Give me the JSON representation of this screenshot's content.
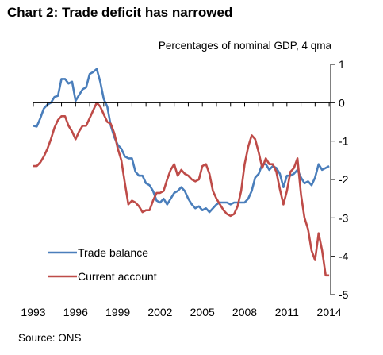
{
  "page": {
    "title": "Chart 2: Trade deficit has narrowed",
    "subtitle": "Percentages of nominal GDP, 4 qma",
    "source": "Source: ONS"
  },
  "chart_data": {
    "type": "line",
    "title": "Chart 2: Trade deficit has narrowed",
    "ylabel": "Percentages of nominal GDP, 4 qma",
    "xlim": [
      1993,
      2014.5
    ],
    "ylim": [
      -5,
      1
    ],
    "x_ticks": [
      1993,
      1996,
      1999,
      2002,
      2005,
      2008,
      2011,
      2014
    ],
    "y_ticks": [
      1,
      0,
      -1,
      -2,
      -3,
      -4,
      -5
    ],
    "y_tick_labels": [
      "1",
      "0",
      "-1",
      "-2",
      "-3",
      "-4",
      "-5"
    ],
    "y_axis_position": "right",
    "grid": false,
    "legend": "bottom-left",
    "series": [
      {
        "name": "Trade balance",
        "color": "#4a7ebb",
        "points": [
          [
            1993.0,
            -0.6
          ],
          [
            1993.25,
            -0.62
          ],
          [
            1993.5,
            -0.4
          ],
          [
            1993.75,
            -0.15
          ],
          [
            1994.0,
            -0.05
          ],
          [
            1994.25,
            0.0
          ],
          [
            1994.5,
            0.15
          ],
          [
            1994.75,
            0.18
          ],
          [
            1995.0,
            0.62
          ],
          [
            1995.25,
            0.62
          ],
          [
            1995.5,
            0.5
          ],
          [
            1995.75,
            0.55
          ],
          [
            1996.0,
            0.05
          ],
          [
            1996.25,
            0.2
          ],
          [
            1996.5,
            0.35
          ],
          [
            1996.75,
            0.4
          ],
          [
            1997.0,
            0.75
          ],
          [
            1997.25,
            0.8
          ],
          [
            1997.5,
            0.88
          ],
          [
            1997.75,
            0.55
          ],
          [
            1998.0,
            0.1
          ],
          [
            1998.25,
            -0.1
          ],
          [
            1998.5,
            -0.6
          ],
          [
            1998.75,
            -0.9
          ],
          [
            1999.0,
            -1.1
          ],
          [
            1999.25,
            -1.2
          ],
          [
            1999.5,
            -1.4
          ],
          [
            1999.75,
            -1.45
          ],
          [
            2000.0,
            -1.45
          ],
          [
            2000.25,
            -1.8
          ],
          [
            2000.5,
            -1.9
          ],
          [
            2000.75,
            -1.9
          ],
          [
            2001.0,
            -2.1
          ],
          [
            2001.25,
            -2.15
          ],
          [
            2001.5,
            -2.3
          ],
          [
            2001.75,
            -2.55
          ],
          [
            2002.0,
            -2.6
          ],
          [
            2002.25,
            -2.5
          ],
          [
            2002.5,
            -2.65
          ],
          [
            2002.75,
            -2.5
          ],
          [
            2003.0,
            -2.35
          ],
          [
            2003.25,
            -2.3
          ],
          [
            2003.5,
            -2.2
          ],
          [
            2003.75,
            -2.3
          ],
          [
            2004.0,
            -2.5
          ],
          [
            2004.25,
            -2.65
          ],
          [
            2004.5,
            -2.75
          ],
          [
            2004.75,
            -2.7
          ],
          [
            2005.0,
            -2.8
          ],
          [
            2005.25,
            -2.75
          ],
          [
            2005.5,
            -2.85
          ],
          [
            2005.75,
            -2.75
          ],
          [
            2006.0,
            -2.65
          ],
          [
            2006.25,
            -2.6
          ],
          [
            2006.5,
            -2.6
          ],
          [
            2006.75,
            -2.6
          ],
          [
            2007.0,
            -2.65
          ],
          [
            2007.25,
            -2.6
          ],
          [
            2007.5,
            -2.6
          ],
          [
            2007.75,
            -2.6
          ],
          [
            2008.0,
            -2.6
          ],
          [
            2008.25,
            -2.5
          ],
          [
            2008.5,
            -2.3
          ],
          [
            2008.75,
            -1.95
          ],
          [
            2009.0,
            -1.85
          ],
          [
            2009.25,
            -1.6
          ],
          [
            2009.5,
            -1.6
          ],
          [
            2009.75,
            -1.75
          ],
          [
            2010.0,
            -1.65
          ],
          [
            2010.25,
            -1.7
          ],
          [
            2010.5,
            -1.85
          ],
          [
            2010.75,
            -2.2
          ],
          [
            2011.0,
            -1.9
          ],
          [
            2011.25,
            -1.9
          ],
          [
            2011.5,
            -1.85
          ],
          [
            2011.75,
            -1.75
          ],
          [
            2012.0,
            -1.95
          ],
          [
            2012.25,
            -2.1
          ],
          [
            2012.5,
            -2.05
          ],
          [
            2012.75,
            -2.15
          ],
          [
            2013.0,
            -1.95
          ],
          [
            2013.25,
            -1.6
          ],
          [
            2013.5,
            -1.75
          ],
          [
            2013.75,
            -1.7
          ],
          [
            2014.0,
            -1.65
          ]
        ]
      },
      {
        "name": "Current account",
        "color": "#be4b48",
        "points": [
          [
            1993.0,
            -1.65
          ],
          [
            1993.25,
            -1.65
          ],
          [
            1993.5,
            -1.55
          ],
          [
            1993.75,
            -1.4
          ],
          [
            1994.0,
            -1.2
          ],
          [
            1994.25,
            -0.95
          ],
          [
            1994.5,
            -0.65
          ],
          [
            1994.75,
            -0.45
          ],
          [
            1995.0,
            -0.35
          ],
          [
            1995.25,
            -0.35
          ],
          [
            1995.5,
            -0.6
          ],
          [
            1995.75,
            -0.75
          ],
          [
            1996.0,
            -0.95
          ],
          [
            1996.25,
            -0.75
          ],
          [
            1996.5,
            -0.6
          ],
          [
            1996.75,
            -0.6
          ],
          [
            1997.0,
            -0.4
          ],
          [
            1997.25,
            -0.2
          ],
          [
            1997.5,
            0.0
          ],
          [
            1997.75,
            -0.1
          ],
          [
            1998.0,
            -0.3
          ],
          [
            1998.25,
            -0.5
          ],
          [
            1998.5,
            -0.55
          ],
          [
            1998.75,
            -0.8
          ],
          [
            1999.0,
            -1.2
          ],
          [
            1999.25,
            -1.5
          ],
          [
            1999.5,
            -2.1
          ],
          [
            1999.75,
            -2.65
          ],
          [
            2000.0,
            -2.55
          ],
          [
            2000.25,
            -2.6
          ],
          [
            2000.5,
            -2.7
          ],
          [
            2000.75,
            -2.85
          ],
          [
            2001.0,
            -2.8
          ],
          [
            2001.25,
            -2.8
          ],
          [
            2001.5,
            -2.55
          ],
          [
            2001.75,
            -2.35
          ],
          [
            2002.0,
            -2.35
          ],
          [
            2002.25,
            -2.3
          ],
          [
            2002.5,
            -2.0
          ],
          [
            2002.75,
            -1.75
          ],
          [
            2003.0,
            -1.6
          ],
          [
            2003.25,
            -1.9
          ],
          [
            2003.5,
            -1.75
          ],
          [
            2003.75,
            -1.85
          ],
          [
            2004.0,
            -1.9
          ],
          [
            2004.25,
            -2.0
          ],
          [
            2004.5,
            -2.05
          ],
          [
            2004.75,
            -2.0
          ],
          [
            2005.0,
            -1.65
          ],
          [
            2005.25,
            -1.6
          ],
          [
            2005.5,
            -1.85
          ],
          [
            2005.75,
            -2.3
          ],
          [
            2006.0,
            -2.5
          ],
          [
            2006.25,
            -2.65
          ],
          [
            2006.5,
            -2.8
          ],
          [
            2006.75,
            -2.9
          ],
          [
            2007.0,
            -2.95
          ],
          [
            2007.25,
            -2.9
          ],
          [
            2007.5,
            -2.7
          ],
          [
            2007.75,
            -2.3
          ],
          [
            2008.0,
            -1.6
          ],
          [
            2008.25,
            -1.15
          ],
          [
            2008.5,
            -0.85
          ],
          [
            2008.75,
            -0.95
          ],
          [
            2009.0,
            -1.3
          ],
          [
            2009.25,
            -1.7
          ],
          [
            2009.5,
            -1.45
          ],
          [
            2009.75,
            -1.6
          ],
          [
            2010.0,
            -1.6
          ],
          [
            2010.25,
            -1.8
          ],
          [
            2010.5,
            -2.25
          ],
          [
            2010.75,
            -2.65
          ],
          [
            2011.0,
            -2.3
          ],
          [
            2011.25,
            -1.8
          ],
          [
            2011.5,
            -1.7
          ],
          [
            2011.75,
            -1.45
          ],
          [
            2012.0,
            -2.4
          ],
          [
            2012.25,
            -3.0
          ],
          [
            2012.5,
            -3.3
          ],
          [
            2012.75,
            -3.85
          ],
          [
            2013.0,
            -4.1
          ],
          [
            2013.25,
            -3.4
          ],
          [
            2013.5,
            -3.85
          ],
          [
            2013.75,
            -4.5
          ],
          [
            2014.0,
            -4.5
          ]
        ]
      }
    ]
  }
}
